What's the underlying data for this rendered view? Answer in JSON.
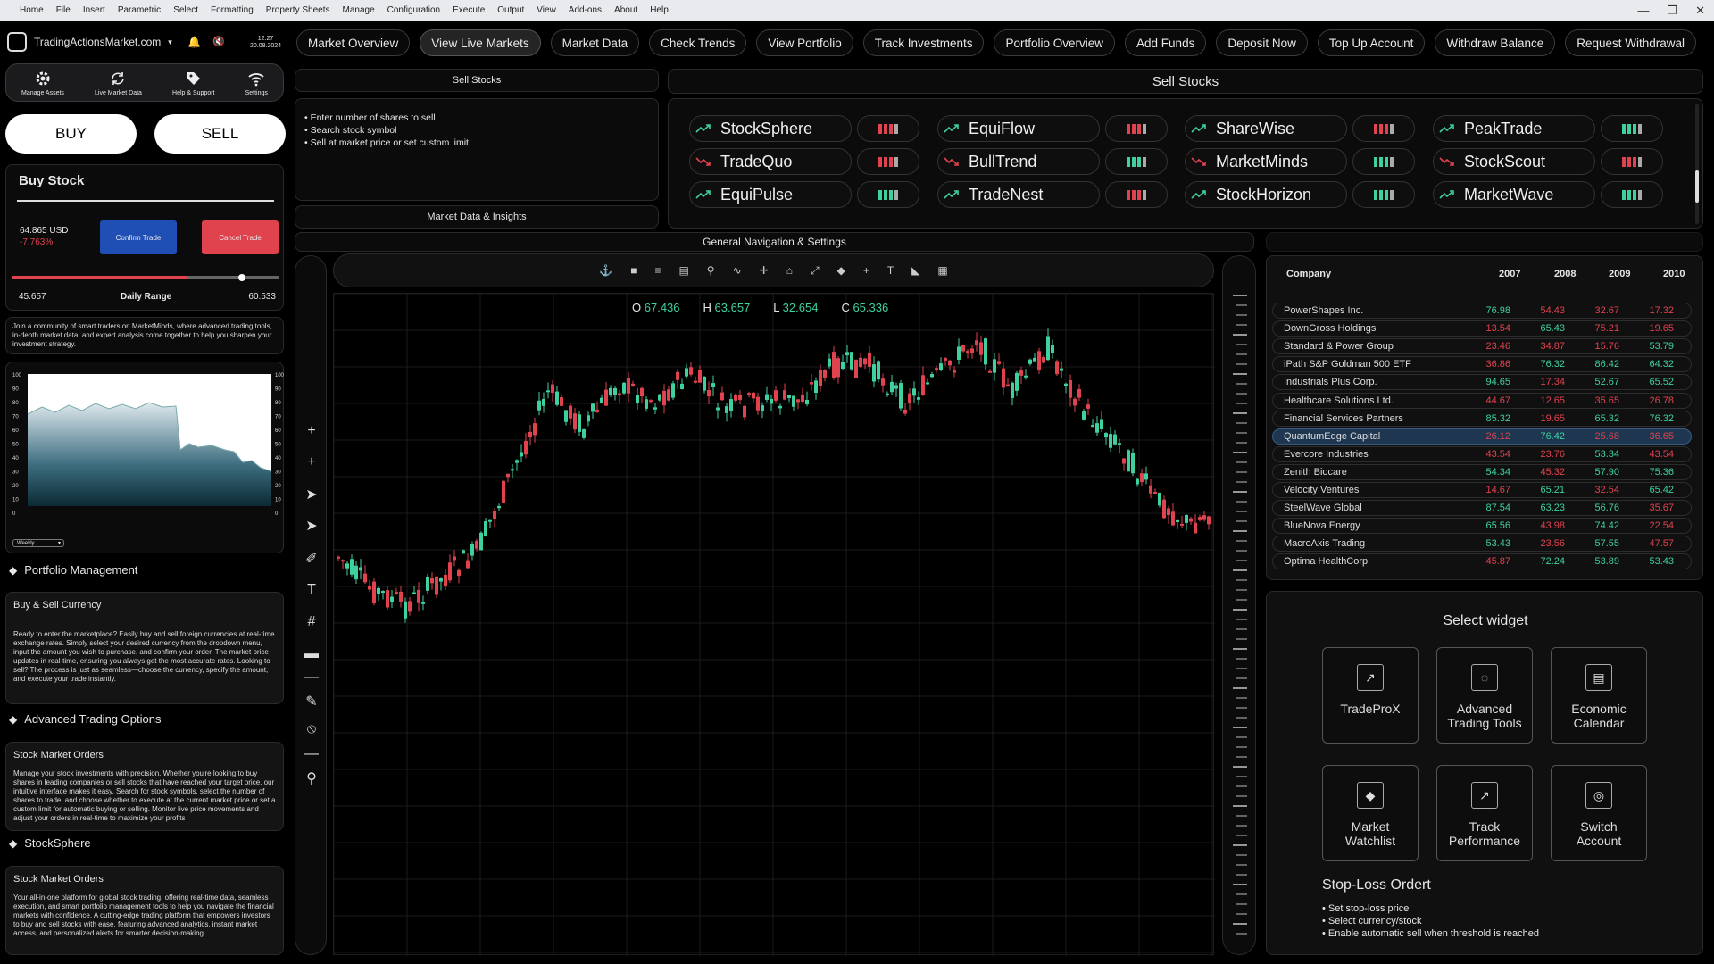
{
  "menu": [
    "Home",
    "File",
    "Insert",
    "Parametric",
    "Select",
    "Formatting",
    "Property Sheets",
    "Manage",
    "Configuration",
    "Execute",
    "Output",
    "View",
    "Add-ons",
    "About",
    "Help"
  ],
  "brand": {
    "name": "TradingActionsMarket.com",
    "time": "12:27",
    "date": "20.08.2024"
  },
  "nav": [
    "Market Overview",
    "View Live Markets",
    "Market Data",
    "Check Trends",
    "View Portfolio",
    "Track Investments",
    "Portfolio Overview",
    "Add Funds",
    "Deposit Now",
    "Top Up Account",
    "Withdraw Balance",
    "Request Withdrawal"
  ],
  "tools": [
    "Manage Assets",
    "Live Market Data",
    "Help & Support",
    "Settings"
  ],
  "buy_label": "BUY",
  "sell_label": "SELL",
  "buy_stock": {
    "title": "Buy Stock",
    "amount": "64.865 USD",
    "change": "-7.763%",
    "confirm": "Confirm Trade",
    "cancel": "Cancel Trade",
    "low": "45.657",
    "range_label": "Daily Range",
    "high": "60.533",
    "range_position": 0.86
  },
  "community_text": "Join a community of smart traders on MarketMinds, where advanced trading tools, in-depth market data, and expert analysis come together to help you sharpen your investment strategy.",
  "mini_chart": {
    "yticks": [
      "100",
      "90",
      "80",
      "70",
      "60",
      "50",
      "40",
      "30",
      "20",
      "10",
      "0"
    ],
    "period": "Weekly"
  },
  "sections": [
    {
      "title": "Portfolio Management",
      "sub": "Buy & Sell Currency",
      "text": "Ready to enter the marketplace? Easily buy and sell foreign currencies at real-time exchange rates. Simply select your desired currency from the dropdown menu, input the amount you wish to purchase, and confirm your order. The market price updates in real-time, ensuring you always get the most accurate rates. Looking to sell? The process is just as seamless—choose the currency, specify the amount, and execute your trade instantly."
    },
    {
      "title": "Advanced Trading Options",
      "sub": "Stock Market Orders",
      "text": "Manage your stock investments with precision. Whether you're looking to buy shares in leading companies or sell stocks that have reached your target price, our intuitive interface makes it easy. Search for stock symbols, select the number of shares to trade, and choose whether to execute at the current market price or set a custom limit for automatic buying or selling. Monitor live price movements and adjust your orders in real-time to maximize your profits"
    },
    {
      "title": "StockSphere",
      "sub": "Stock Market Orders",
      "text": "Your all-in-one platform for global stock trading, offering real-time data, seamless execution, and smart portfolio management tools to help you navigate the financial markets with confidence. A cutting-edge trading platform that empowers investors to buy and sell stocks with ease, featuring advanced analytics, instant market access, and personalized alerts for smarter decision-making."
    }
  ],
  "sell_panel": {
    "title": "Sell Stocks",
    "bullets": [
      "Enter number of shares to sell",
      "Search stock symbol",
      "Sell at market price or set custom limit"
    ],
    "footer": "Market Data & Insights"
  },
  "sell_main_title": "Sell Stocks",
  "tickers": [
    [
      {
        "name": "StockSphere",
        "up": true,
        "bar": "#e0424e"
      },
      {
        "name": "EquiFlow",
        "up": true,
        "bar": "#e0424e"
      },
      {
        "name": "ShareWise",
        "up": true,
        "bar": "#e0424e"
      },
      {
        "name": "PeakTrade",
        "up": true,
        "bar": "#3fd0a0"
      }
    ],
    [
      {
        "name": "TradeQuo",
        "up": false,
        "bar": "#e0424e"
      },
      {
        "name": "BullTrend",
        "up": false,
        "bar": "#3fd0a0"
      },
      {
        "name": "MarketMinds",
        "up": false,
        "bar": "#3fd0a0"
      },
      {
        "name": "StockScout",
        "up": false,
        "bar": "#e0424e"
      }
    ],
    [
      {
        "name": "EquiPulse",
        "up": true,
        "bar": "#3fd0a0"
      },
      {
        "name": "TradeNest",
        "up": true,
        "bar": "#e0424e"
      },
      {
        "name": "StockHorizon",
        "up": true,
        "bar": "#3fd0a0"
      },
      {
        "name": "MarketWave",
        "up": true,
        "bar": "#3fd0a0"
      }
    ]
  ],
  "general_nav": "General Navigation & Settings",
  "ohlc": {
    "o_label": "O",
    "o": "67.436",
    "h_label": "H",
    "h": "63.657",
    "l_label": "L",
    "l": "32.654",
    "c_label": "C",
    "c": "65.336"
  },
  "table": {
    "headers": [
      "Company",
      "2007",
      "2008",
      "2009",
      "2010"
    ],
    "rows": [
      [
        "PowerShapes Inc.",
        "76.98",
        "54.43",
        "32.67",
        "17.32"
      ],
      [
        "DownGross Holdings",
        "13.54",
        "65.43",
        "75.21",
        "19.65"
      ],
      [
        "Standard & Power Group",
        "23.46",
        "34.87",
        "15.76",
        "53.79"
      ],
      [
        "iPath S&P Goldman 500 ETF",
        "36.86",
        "76.32",
        "86.42",
        "64.32"
      ],
      [
        "Industrials Plus Corp.",
        "94.65",
        "17.34",
        "52.67",
        "65.52"
      ],
      [
        "Healthcare Solutions Ltd.",
        "44.67",
        "12.65",
        "35.65",
        "26.78"
      ],
      [
        "Financial Services Partners",
        "85.32",
        "19.65",
        "65.32",
        "76.32"
      ],
      [
        "QuantumEdge Capital",
        "26.12",
        "76.42",
        "25.68",
        "36.65"
      ],
      [
        "Evercore Industries",
        "43.54",
        "23.76",
        "53.34",
        "43.54"
      ],
      [
        "Zenith Biocare",
        "54.34",
        "45.32",
        "57.90",
        "75.36"
      ],
      [
        "Velocity Ventures",
        "14.67",
        "65.21",
        "32.54",
        "65.42"
      ],
      [
        "SteelWave Global",
        "87.54",
        "63.23",
        "56.76",
        "35.67"
      ],
      [
        "BlueNova Energy",
        "65.56",
        "43.98",
        "74.42",
        "22.54"
      ],
      [
        "MacroAxis Trading",
        "53.43",
        "23.56",
        "57.55",
        "47.57"
      ],
      [
        "Optima HealthCorp",
        "45.87",
        "72.24",
        "53.89",
        "53.43"
      ]
    ],
    "colors": [
      [
        "g",
        "r",
        "r",
        "r"
      ],
      [
        "r",
        "g",
        "r",
        "r"
      ],
      [
        "r",
        "r",
        "r",
        "g"
      ],
      [
        "r",
        "g",
        "g",
        "g"
      ],
      [
        "g",
        "r",
        "g",
        "g"
      ],
      [
        "r",
        "r",
        "r",
        "r"
      ],
      [
        "g",
        "r",
        "g",
        "g"
      ],
      [
        "r",
        "g",
        "r",
        "r"
      ],
      [
        "r",
        "r",
        "g",
        "r"
      ],
      [
        "g",
        "r",
        "g",
        "g"
      ],
      [
        "r",
        "g",
        "r",
        "g"
      ],
      [
        "g",
        "g",
        "g",
        "r"
      ],
      [
        "g",
        "r",
        "g",
        "r"
      ],
      [
        "g",
        "r",
        "g",
        "r"
      ],
      [
        "r",
        "g",
        "g",
        "g"
      ]
    ]
  },
  "colors": {
    "green": "#3fd0a0",
    "red": "#e0424e",
    "confirm": "#1f4fb4",
    "cancel": "#e0424e"
  },
  "widgets": {
    "title": "Select widget",
    "items": [
      "TradeProX",
      "Advanced Trading Tools",
      "Economic Calendar",
      "Market Watchlist",
      "Track Performance",
      "Switch Account"
    ]
  },
  "stoploss": {
    "title": "Stop-Loss Ordert",
    "bullets": [
      "Set stop-loss price",
      "Select currency/stock",
      "Enable automatic sell when threshold is reached"
    ]
  }
}
